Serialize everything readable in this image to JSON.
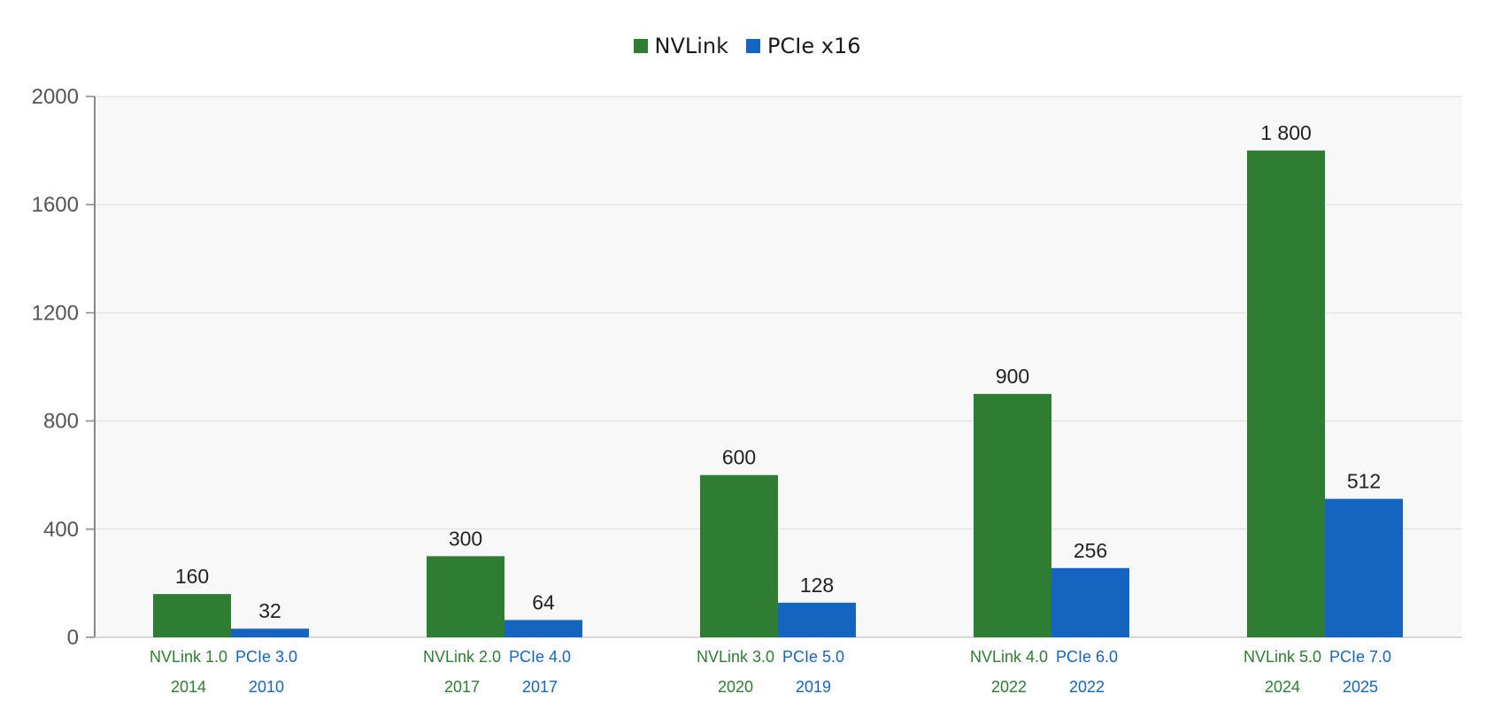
{
  "legend": {
    "nvlink_label": "NVLink",
    "pcie_label": "PCIe x16"
  },
  "colors": {
    "nvlink": "#2e7d32",
    "pcie": "#1565c0",
    "plot_bg": "#f8f8f8",
    "grid": "#dddddd",
    "axis": "#888888"
  },
  "chart_data": {
    "type": "bar",
    "categories": [
      {
        "nvlink_name": "NVLink 1.0",
        "nvlink_year": "2014",
        "pcie_name": "PCIe 3.0",
        "pcie_year": "2010"
      },
      {
        "nvlink_name": "NVLink 2.0",
        "nvlink_year": "2017",
        "pcie_name": "PCIe 4.0",
        "pcie_year": "2017"
      },
      {
        "nvlink_name": "NVLink 3.0",
        "nvlink_year": "2020",
        "pcie_name": "PCIe 5.0",
        "pcie_year": "2019"
      },
      {
        "nvlink_name": "NVLink 4.0",
        "nvlink_year": "2022",
        "pcie_name": "PCIe 6.0",
        "pcie_year": "2022"
      },
      {
        "nvlink_name": "NVLink 5.0",
        "nvlink_year": "2024",
        "pcie_name": "PCIe 7.0",
        "pcie_year": "2025"
      }
    ],
    "series": [
      {
        "name": "NVLink",
        "values": [
          160,
          300,
          600,
          900,
          1800
        ],
        "labels": [
          "160",
          "300",
          "600",
          "900",
          "1 800"
        ]
      },
      {
        "name": "PCIe x16",
        "values": [
          32,
          64,
          128,
          256,
          512
        ],
        "labels": [
          "32",
          "64",
          "128",
          "256",
          "512"
        ]
      }
    ],
    "yticks": [
      0,
      400,
      800,
      1200,
      1600,
      2000
    ],
    "ylim": [
      0,
      2000
    ],
    "grid": true,
    "legend_position": "top-center"
  }
}
